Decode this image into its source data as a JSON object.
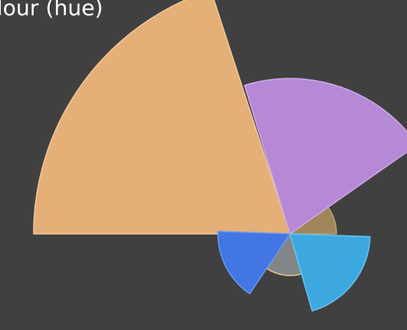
{
  "caption": "lour (hue)",
  "colors": {
    "background": "#404040",
    "caption_text": "#ffffff"
  },
  "sectors": [
    {
      "name": "orange",
      "fill": "#E5AF78",
      "stroke": "#F0C896",
      "radius": 320
    },
    {
      "name": "purple",
      "fill": "#B589D6",
      "stroke": "#CDA8E6",
      "radius": 194
    },
    {
      "name": "olive",
      "fill": "#A0875A",
      "stroke": "#B89F6E",
      "radius": 58
    },
    {
      "name": "cyan",
      "fill": "#3DA8E0",
      "stroke": "#66C2EE",
      "radius": 100
    },
    {
      "name": "gray",
      "fill": "#838688",
      "stroke": "#E6C48C",
      "radius": 52
    },
    {
      "name": "blue",
      "fill": "#4176E3",
      "stroke": "#6A98F0",
      "radius": 90
    }
  ]
}
